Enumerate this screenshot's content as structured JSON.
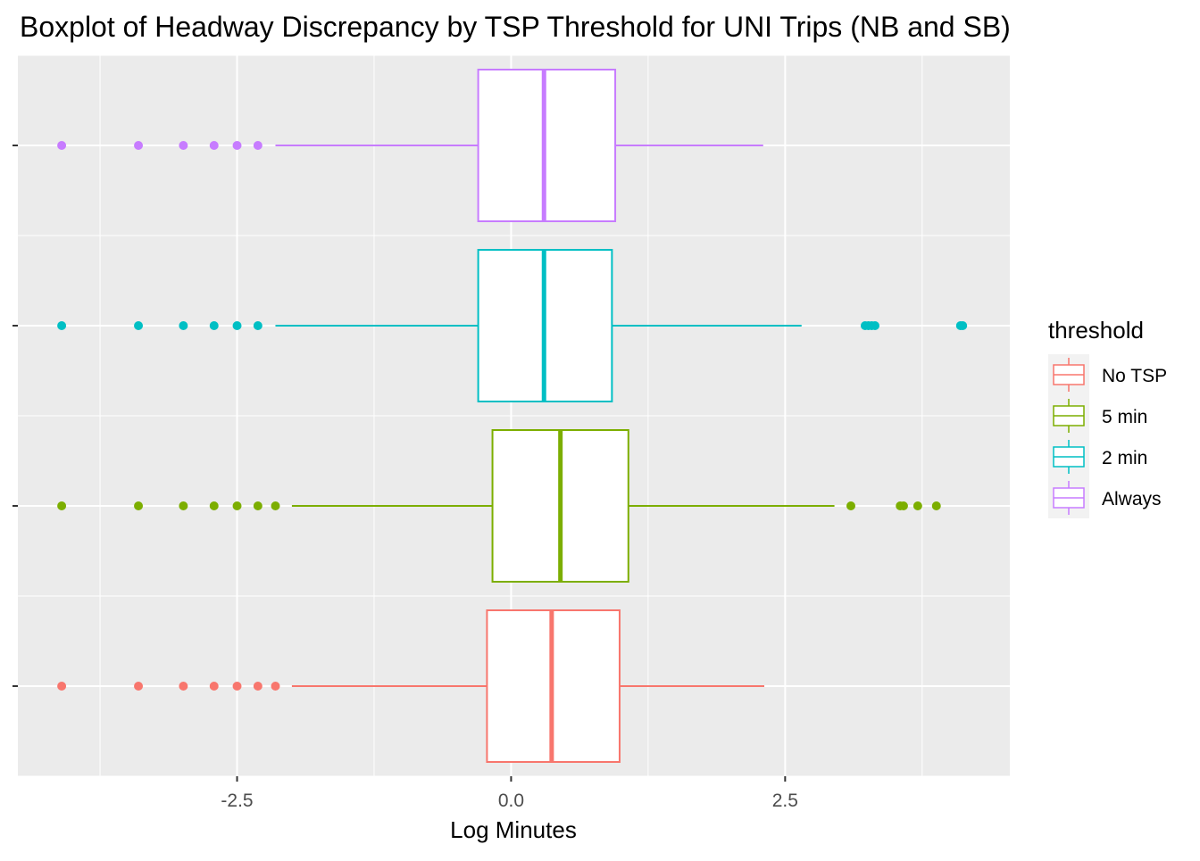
{
  "chart_data": {
    "type": "boxplot",
    "orientation": "horizontal",
    "title": "Boxplot of Headway Discrepancy by TSP Threshold for UNI Trips (NB and SB)",
    "xlabel": "Log Minutes",
    "ylabel": "",
    "xlim": [
      -4.5,
      4.55
    ],
    "x_ticks": [
      -2.5,
      0.0,
      2.5
    ],
    "x_tick_labels": [
      "-2.5",
      "0.0",
      "2.5"
    ],
    "grid": true,
    "legend": {
      "title": "threshold",
      "position": "right",
      "entries": [
        "No TSP",
        "5 min",
        "2 min",
        "Always"
      ]
    },
    "series": [
      {
        "name": "No TSP",
        "color": "#F8766D",
        "whisker_low": -2.0,
        "q1": -0.22,
        "median": 0.37,
        "q3": 0.99,
        "whisker_high": 2.31,
        "outliers": [
          -4.1,
          -3.4,
          -2.99,
          -2.71,
          -2.5,
          -2.31,
          -2.15
        ]
      },
      {
        "name": "5 min",
        "color": "#7CAE00",
        "whisker_low": -2.0,
        "q1": -0.17,
        "median": 0.45,
        "q3": 1.07,
        "whisker_high": 2.95,
        "outliers": [
          -4.1,
          -3.4,
          -2.99,
          -2.71,
          -2.5,
          -2.31,
          -2.15,
          3.1,
          3.55,
          3.58,
          3.71,
          3.88
        ]
      },
      {
        "name": "2 min",
        "color": "#00BFC4",
        "whisker_low": -2.15,
        "q1": -0.3,
        "median": 0.3,
        "q3": 0.92,
        "whisker_high": 2.65,
        "outliers": [
          -4.1,
          -3.4,
          -2.99,
          -2.71,
          -2.5,
          -2.31,
          3.23,
          3.26,
          3.29,
          3.32,
          4.1,
          4.12
        ]
      },
      {
        "name": "Always",
        "color": "#C77CFF",
        "whisker_low": -2.15,
        "q1": -0.3,
        "median": 0.3,
        "q3": 0.95,
        "whisker_high": 2.3,
        "outliers": [
          -4.1,
          -3.4,
          -2.99,
          -2.71,
          -2.5,
          -2.31
        ]
      }
    ]
  }
}
